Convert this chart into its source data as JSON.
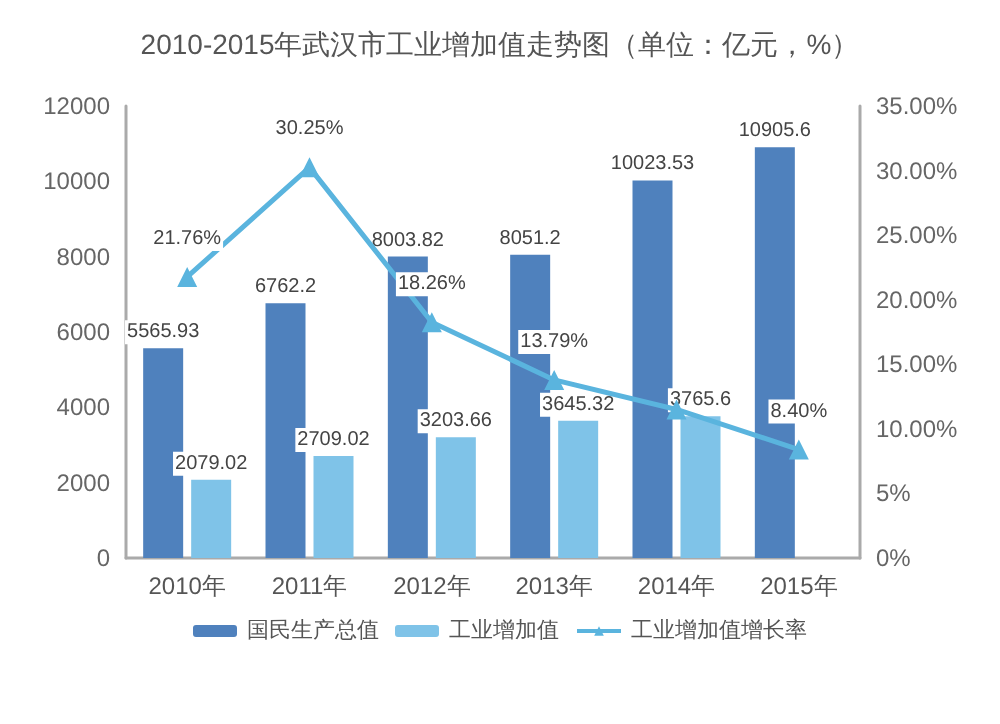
{
  "chart_data": {
    "type": "bar",
    "title": "2010-2015年武汉市工业增加值走势图（单位：亿元，%）",
    "categories": [
      "2010年",
      "2011年",
      "2012年",
      "2013年",
      "2014年",
      "2015年"
    ],
    "series": [
      {
        "name": "国民生产总值",
        "color": "#4f81bd",
        "values": [
          5565.93,
          6762.2,
          8003.82,
          8051.2,
          10023.53,
          10905.6
        ],
        "value_labels": [
          "5565.93",
          "6762.2",
          "8003.82",
          "8051.2",
          "10023.53",
          "10905.6"
        ]
      },
      {
        "name": "工业增加值",
        "color": "#7fc3e8",
        "values": [
          2079.02,
          2709.02,
          3203.66,
          3645.32,
          3765.6,
          null
        ],
        "value_labels": [
          "2079.02",
          "2709.02",
          "3203.66",
          "3645.32",
          "3765.6",
          null
        ]
      },
      {
        "name": "工业增加值增长率",
        "type": "line",
        "axis": "y2",
        "color": "#5ab4de",
        "marker": "triangle",
        "values": [
          21.76,
          30.25,
          18.26,
          13.79,
          11.5,
          8.4
        ],
        "value_labels": [
          "21.76%",
          "30.25%",
          "18.26%",
          "13.79%",
          null,
          "8.40%"
        ]
      }
    ],
    "ylim": [
      0,
      12000
    ],
    "yticks": [
      0,
      2000,
      4000,
      6000,
      8000,
      10000,
      12000
    ],
    "y2lim": [
      0,
      35
    ],
    "y2ticks": [
      {
        "value": 0,
        "label": "0%"
      },
      {
        "value": 5,
        "label": "5%"
      },
      {
        "value": 10,
        "label": "10.00%"
      },
      {
        "value": 15,
        "label": "15.00%"
      },
      {
        "value": 20,
        "label": "20.00%"
      },
      {
        "value": 25,
        "label": "25.00%"
      },
      {
        "value": 30,
        "label": "30.00%"
      },
      {
        "value": 35,
        "label": "35.00%"
      }
    ],
    "grid": false,
    "legend": "bottom"
  }
}
